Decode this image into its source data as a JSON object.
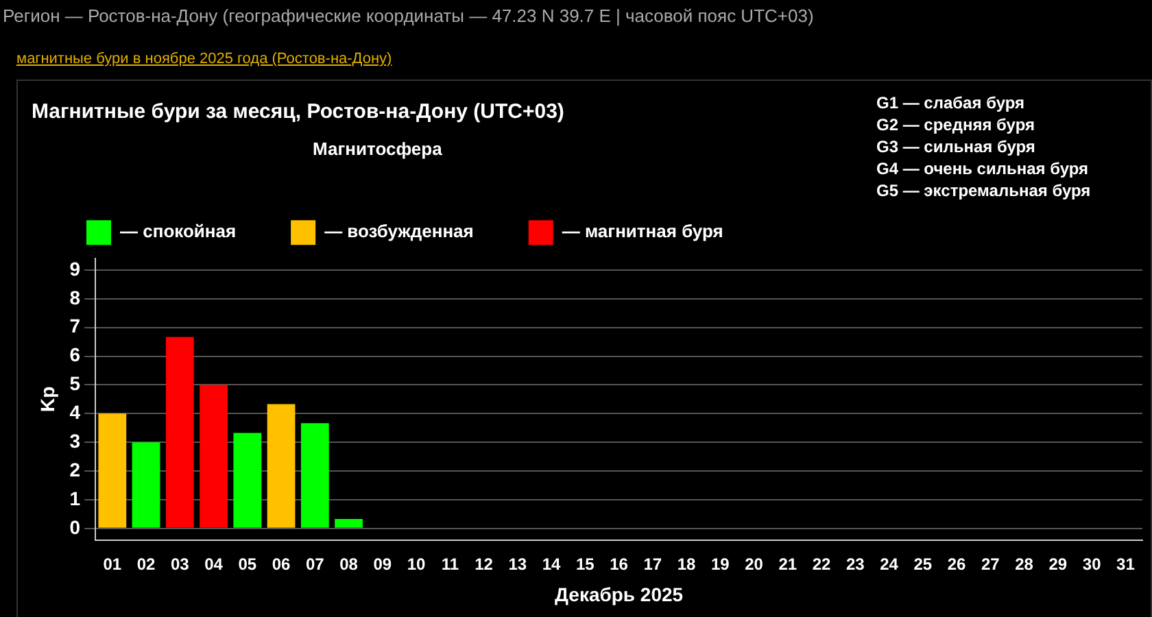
{
  "chart_data": {
    "type": "bar",
    "title": "Магнитные бури за месяц, Ростов-на-Дону (UTC+03)",
    "legend_title": "Магнитосфера",
    "xlabel": "Декабрь 2025",
    "ylabel": "Kp",
    "annotations": [
      "Регион — Ростов-на-Дону (географические координаты — 47.23 N 39.7 E | часовой пояс UTC+03)",
      "магнитные бури в ноябре 2025 года (Ростов-на-Дону)",
      "G1 — слабая буря",
      "G2 — средняя буря",
      "G3 — сильная буря",
      "G4 — очень сильная буря",
      "G5 — экстремальная буря"
    ],
    "categories": [
      "01",
      "02",
      "03",
      "04",
      "05",
      "06",
      "07",
      "08",
      "09",
      "10",
      "11",
      "12",
      "13",
      "14",
      "15",
      "16",
      "17",
      "18",
      "19",
      "20",
      "21",
      "22",
      "23",
      "24",
      "25",
      "26",
      "27",
      "28",
      "29",
      "30",
      "31"
    ],
    "stacked": true,
    "series": [
      {
        "name": "— спокойная",
        "color": "#00ff00",
        "values": [
          null,
          3.0,
          null,
          null,
          3.33,
          null,
          3.67,
          0.33,
          null,
          null,
          null,
          null,
          null,
          null,
          null,
          null,
          null,
          null,
          null,
          null,
          null,
          null,
          null,
          null,
          null,
          null,
          null,
          null,
          null,
          null,
          null
        ]
      },
      {
        "name": "— возбужденная",
        "color": "#ffc000",
        "values": [
          4.0,
          null,
          null,
          null,
          null,
          4.33,
          null,
          null,
          null,
          null,
          null,
          null,
          null,
          null,
          null,
          null,
          null,
          null,
          null,
          null,
          null,
          null,
          null,
          null,
          null,
          null,
          null,
          null,
          null,
          null,
          null
        ]
      },
      {
        "name": "— магнитная буря",
        "color": "#ff0000",
        "values": [
          null,
          null,
          6.67,
          5.0,
          null,
          null,
          null,
          null,
          null,
          null,
          null,
          null,
          null,
          null,
          null,
          null,
          null,
          null,
          null,
          null,
          null,
          null,
          null,
          null,
          null,
          null,
          null,
          null,
          null,
          null,
          null
        ]
      }
    ],
    "ylim": [
      -0.4,
      9.4
    ],
    "yticks": [
      0,
      1,
      2,
      3,
      4,
      5,
      6,
      7,
      8,
      9
    ],
    "grid": "y",
    "legend": "top left"
  }
}
